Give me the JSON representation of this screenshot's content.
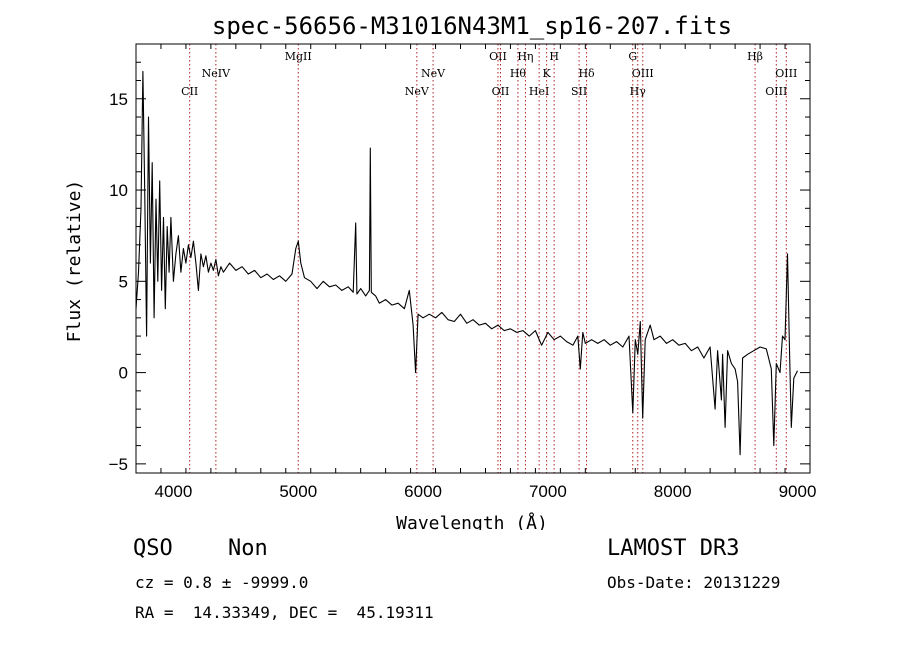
{
  "chart_data": {
    "type": "line",
    "title": "spec-56656-M31016N43M1_sp16-207.fits",
    "xlabel": "Wavelength (Å)",
    "ylabel": "Flux (relative)",
    "xlim": [
      3700,
      9100
    ],
    "ylim": [
      -5.5,
      18
    ],
    "xticks": [
      4000,
      5000,
      6000,
      7000,
      8000,
      9000
    ],
    "yticks": [
      -5,
      0,
      5,
      10,
      15
    ],
    "grid": false,
    "series": [
      {
        "points": [
          [
            3700,
            3.5
          ],
          [
            3720,
            5.5
          ],
          [
            3740,
            9.0
          ],
          [
            3755,
            16.5
          ],
          [
            3770,
            10.0
          ],
          [
            3785,
            2.0
          ],
          [
            3800,
            14.0
          ],
          [
            3815,
            6.0
          ],
          [
            3830,
            11.5
          ],
          [
            3845,
            3.0
          ],
          [
            3860,
            9.5
          ],
          [
            3875,
            5.0
          ],
          [
            3890,
            10.5
          ],
          [
            3905,
            4.5
          ],
          [
            3920,
            8.5
          ],
          [
            3935,
            3.5
          ],
          [
            3950,
            8.0
          ],
          [
            3965,
            5.5
          ],
          [
            3980,
            8.5
          ],
          [
            4000,
            5.0
          ],
          [
            4020,
            6.5
          ],
          [
            4040,
            7.5
          ],
          [
            4060,
            5.5
          ],
          [
            4080,
            6.8
          ],
          [
            4100,
            6.0
          ],
          [
            4120,
            7.0
          ],
          [
            4140,
            6.3
          ],
          [
            4160,
            7.2
          ],
          [
            4180,
            6.0
          ],
          [
            4200,
            4.5
          ],
          [
            4220,
            6.5
          ],
          [
            4240,
            5.8
          ],
          [
            4260,
            6.4
          ],
          [
            4280,
            5.5
          ],
          [
            4300,
            6.0
          ],
          [
            4320,
            5.6
          ],
          [
            4340,
            6.2
          ],
          [
            4360,
            5.3
          ],
          [
            4380,
            5.8
          ],
          [
            4400,
            5.5
          ],
          [
            4450,
            6.0
          ],
          [
            4500,
            5.6
          ],
          [
            4550,
            5.8
          ],
          [
            4600,
            5.4
          ],
          [
            4650,
            5.6
          ],
          [
            4700,
            5.2
          ],
          [
            4750,
            5.4
          ],
          [
            4800,
            5.1
          ],
          [
            4850,
            5.3
          ],
          [
            4900,
            5.0
          ],
          [
            4950,
            5.4
          ],
          [
            4980,
            6.8
          ],
          [
            5000,
            7.2
          ],
          [
            5020,
            6.0
          ],
          [
            5050,
            5.2
          ],
          [
            5100,
            5.0
          ],
          [
            5150,
            4.6
          ],
          [
            5200,
            5.0
          ],
          [
            5250,
            4.7
          ],
          [
            5300,
            4.8
          ],
          [
            5350,
            4.5
          ],
          [
            5400,
            4.7
          ],
          [
            5440,
            4.4
          ],
          [
            5460,
            8.2
          ],
          [
            5470,
            4.3
          ],
          [
            5500,
            4.6
          ],
          [
            5540,
            4.2
          ],
          [
            5570,
            4.5
          ],
          [
            5577,
            12.3
          ],
          [
            5585,
            4.4
          ],
          [
            5620,
            4.2
          ],
          [
            5650,
            3.8
          ],
          [
            5700,
            4.0
          ],
          [
            5750,
            3.7
          ],
          [
            5800,
            3.8
          ],
          [
            5850,
            3.5
          ],
          [
            5890,
            4.5
          ],
          [
            5920,
            2.6
          ],
          [
            5940,
            0.0
          ],
          [
            5960,
            3.2
          ],
          [
            6000,
            3.0
          ],
          [
            6050,
            3.2
          ],
          [
            6100,
            3.0
          ],
          [
            6150,
            3.3
          ],
          [
            6200,
            2.9
          ],
          [
            6250,
            2.8
          ],
          [
            6300,
            3.2
          ],
          [
            6350,
            2.7
          ],
          [
            6400,
            2.9
          ],
          [
            6450,
            2.6
          ],
          [
            6500,
            2.7
          ],
          [
            6550,
            2.4
          ],
          [
            6600,
            2.6
          ],
          [
            6650,
            2.3
          ],
          [
            6700,
            2.4
          ],
          [
            6750,
            2.2
          ],
          [
            6800,
            2.3
          ],
          [
            6850,
            2.0
          ],
          [
            6900,
            2.3
          ],
          [
            6950,
            1.5
          ],
          [
            7000,
            2.2
          ],
          [
            7050,
            1.8
          ],
          [
            7100,
            2.0
          ],
          [
            7150,
            1.7
          ],
          [
            7200,
            1.5
          ],
          [
            7240,
            2.0
          ],
          [
            7260,
            0.2
          ],
          [
            7280,
            2.2
          ],
          [
            7300,
            1.6
          ],
          [
            7350,
            1.8
          ],
          [
            7400,
            1.6
          ],
          [
            7450,
            1.8
          ],
          [
            7500,
            1.5
          ],
          [
            7550,
            1.7
          ],
          [
            7600,
            1.4
          ],
          [
            7650,
            2.0
          ],
          [
            7680,
            -2.2
          ],
          [
            7700,
            1.8
          ],
          [
            7720,
            1.0
          ],
          [
            7740,
            2.8
          ],
          [
            7760,
            -2.5
          ],
          [
            7780,
            1.8
          ],
          [
            7820,
            2.6
          ],
          [
            7850,
            1.8
          ],
          [
            7900,
            2.0
          ],
          [
            7950,
            1.6
          ],
          [
            8000,
            1.8
          ],
          [
            8050,
            1.5
          ],
          [
            8100,
            1.6
          ],
          [
            8150,
            1.2
          ],
          [
            8200,
            1.4
          ],
          [
            8250,
            0.8
          ],
          [
            8300,
            1.4
          ],
          [
            8340,
            -2.0
          ],
          [
            8360,
            1.2
          ],
          [
            8390,
            -1.5
          ],
          [
            8400,
            1.0
          ],
          [
            8420,
            -3.0
          ],
          [
            8440,
            1.2
          ],
          [
            8470,
            0.5
          ],
          [
            8500,
            0.2
          ],
          [
            8520,
            -0.5
          ],
          [
            8540,
            -4.5
          ],
          [
            8560,
            0.8
          ],
          [
            8600,
            1.0
          ],
          [
            8650,
            1.2
          ],
          [
            8700,
            1.4
          ],
          [
            8750,
            1.3
          ],
          [
            8790,
            0.2
          ],
          [
            8810,
            -4.0
          ],
          [
            8830,
            0.5
          ],
          [
            8860,
            0.0
          ],
          [
            8880,
            2.0
          ],
          [
            8900,
            1.8
          ],
          [
            8920,
            6.5
          ],
          [
            8935,
            1.5
          ],
          [
            8950,
            -3.0
          ],
          [
            8970,
            -0.3
          ],
          [
            9000,
            0.1
          ]
        ]
      }
    ],
    "line_color": "#000000",
    "marker_color": "#b22222",
    "line_markers": [
      {
        "wl": 4130,
        "label": "CII",
        "row": 2
      },
      {
        "wl": 4340,
        "label": "NeIV",
        "row": 1
      },
      {
        "wl": 5000,
        "label": "MgII",
        "row": 0
      },
      {
        "wl": 5950,
        "label": "NeV",
        "row": 2
      },
      {
        "wl": 6080,
        "label": "NeV",
        "row": 1
      },
      {
        "wl": 6600,
        "label": "OII",
        "row": 0
      },
      {
        "wl": 6620,
        "label": "OII",
        "row": 2
      },
      {
        "wl": 6760,
        "label": "Hθ",
        "row": 1
      },
      {
        "wl": 6820,
        "label": "Hη",
        "row": 0
      },
      {
        "wl": 6930,
        "label": "HeI",
        "row": 2
      },
      {
        "wl": 6990,
        "label": "K",
        "row": 1
      },
      {
        "wl": 7050,
        "label": "H",
        "row": 0
      },
      {
        "wl": 7250,
        "label": "SII",
        "row": 2
      },
      {
        "wl": 7310,
        "label": "Hδ",
        "row": 1
      },
      {
        "wl": 7680,
        "label": "G",
        "row": 0
      },
      {
        "wl": 7720,
        "label": "Hγ",
        "row": 2
      },
      {
        "wl": 7760,
        "label": "OIII",
        "row": 1
      },
      {
        "wl": 8660,
        "label": "Hβ",
        "row": 0
      },
      {
        "wl": 8830,
        "label": "OIII",
        "row": 2
      },
      {
        "wl": 8910,
        "label": "OIII",
        "row": 1
      }
    ]
  },
  "footer": {
    "class_label": "QSO",
    "subclass_label": "Non",
    "survey_label": "LAMOST DR3",
    "cz_text": "cz = 0.8 ± -9999.0",
    "obsdate_text": "Obs-Date: 20131229",
    "radec_text": "RA =  14.33349, DEC =  45.19311"
  }
}
